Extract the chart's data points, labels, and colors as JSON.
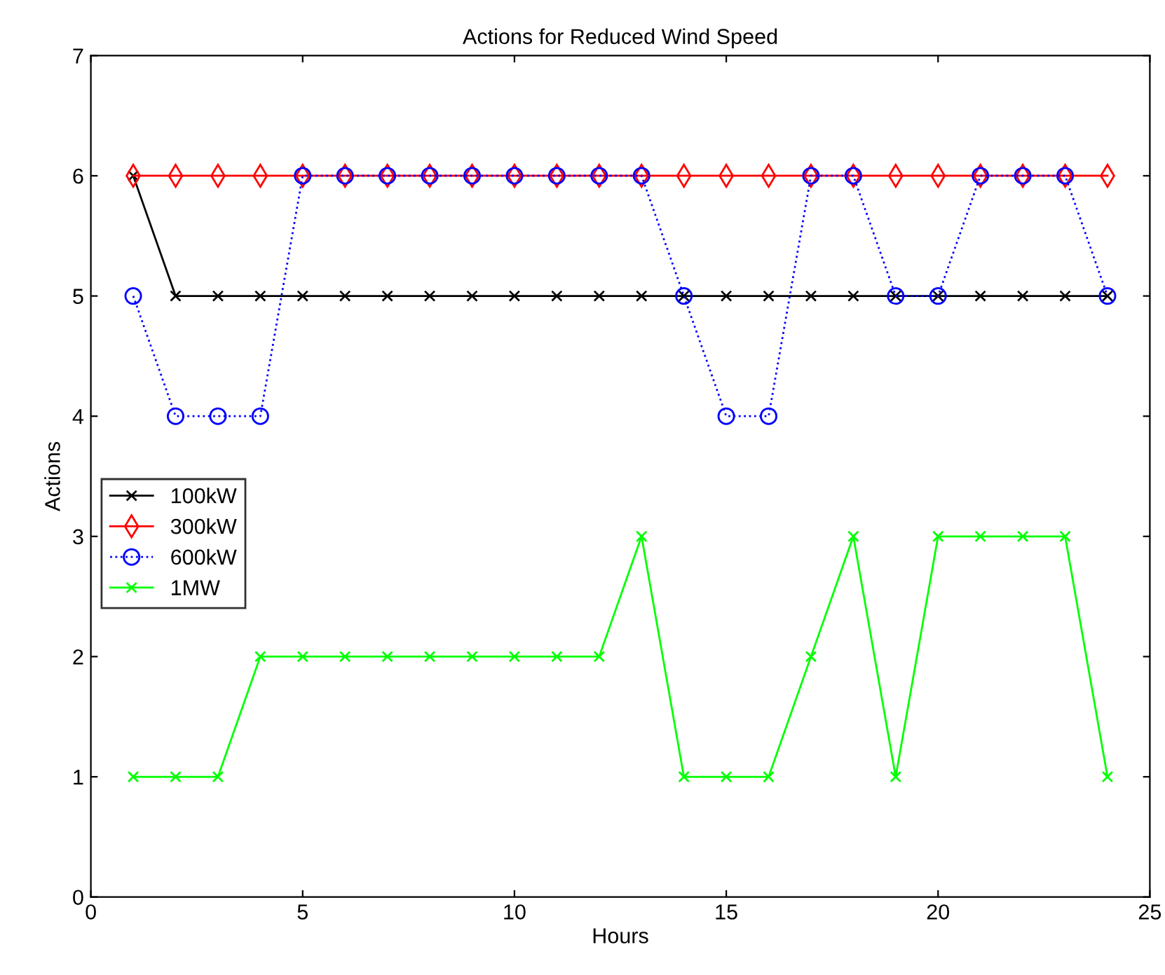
{
  "chart_data": {
    "type": "line",
    "title": "Actions for Reduced Wind Speed",
    "xlabel": "Hours",
    "ylabel": "Actions",
    "x": [
      1,
      2,
      3,
      4,
      5,
      6,
      7,
      8,
      9,
      10,
      11,
      12,
      13,
      14,
      15,
      16,
      17,
      18,
      19,
      20,
      21,
      22,
      23,
      24
    ],
    "series": [
      {
        "name": "100kW",
        "color": "#000000",
        "marker": "cross",
        "line_style": "solid",
        "values": [
          6,
          5,
          5,
          5,
          5,
          5,
          5,
          5,
          5,
          5,
          5,
          5,
          5,
          5,
          5,
          5,
          5,
          5,
          5,
          5,
          5,
          5,
          5,
          5
        ]
      },
      {
        "name": "300kW",
        "color": "#ff0000",
        "marker": "diamond",
        "line_style": "solid",
        "values": [
          6,
          6,
          6,
          6,
          6,
          6,
          6,
          6,
          6,
          6,
          6,
          6,
          6,
          6,
          6,
          6,
          6,
          6,
          6,
          6,
          6,
          6,
          6,
          6
        ]
      },
      {
        "name": "600kW",
        "color": "#0000ff",
        "marker": "circle",
        "line_style": "dotted",
        "values": [
          5,
          4,
          4,
          4,
          6,
          6,
          6,
          6,
          6,
          6,
          6,
          6,
          6,
          5,
          4,
          4,
          6,
          6,
          5,
          5,
          6,
          6,
          6,
          5
        ]
      },
      {
        "name": "1MW",
        "color": "#00ff00",
        "marker": "cross",
        "line_style": "solid",
        "values": [
          1,
          1,
          1,
          2,
          2,
          2,
          2,
          2,
          2,
          2,
          2,
          2,
          3,
          1,
          1,
          1,
          2,
          3,
          1,
          3,
          3,
          3,
          3,
          1
        ]
      }
    ],
    "xlim": [
      0,
      25
    ],
    "xticks": [
      0,
      5,
      10,
      15,
      20,
      25
    ],
    "ylim": [
      0,
      7
    ],
    "yticks": [
      0,
      1,
      2,
      3,
      4,
      5,
      6,
      7
    ],
    "grid": false,
    "legend": "left"
  }
}
